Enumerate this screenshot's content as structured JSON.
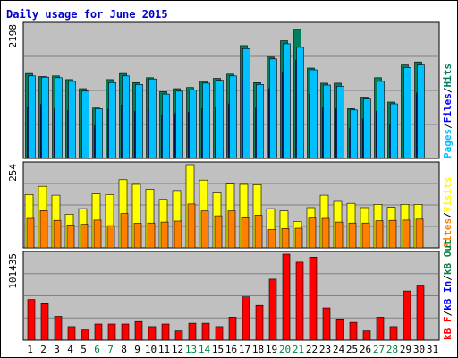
{
  "chart_data": {
    "type": "bar",
    "title": "Daily usage for June 2015",
    "days": [
      "1",
      "2",
      "3",
      "4",
      "5",
      "6",
      "7",
      "8",
      "9",
      "10",
      "11",
      "12",
      "13",
      "14",
      "15",
      "16",
      "17",
      "18",
      "19",
      "20",
      "21",
      "22",
      "23",
      "24",
      "25",
      "26",
      "27",
      "28",
      "29",
      "30",
      "31"
    ],
    "weekend_days": [
      "6",
      "7",
      "13",
      "14",
      "20",
      "21",
      "27",
      "28"
    ],
    "panels": [
      {
        "id": "hits",
        "max_label": "2198",
        "ymax": 2198,
        "series": [
          {
            "name": "Hits",
            "color": "#00805c",
            "values": [
              1400,
              1350,
              1360,
              1300,
              1150,
              830,
              1300,
              1400,
              1250,
              1330,
              1100,
              1150,
              1170,
              1270,
              1320,
              1390,
              1860,
              1250,
              1670,
              1940,
              2130,
              1490,
              1240,
              1240,
              820,
              1010,
              1330,
              930,
              1540,
              1590,
              0
            ]
          },
          {
            "name": "Files",
            "color": "#0000ff",
            "values": [
              840,
              890,
              820,
              790,
              650,
              540,
              810,
              880,
              780,
              810,
              720,
              740,
              760,
              820,
              840,
              900,
              1320,
              830,
              1150,
              1430,
              1620,
              1060,
              830,
              820,
              500,
              650,
              780,
              560,
              1000,
              1080,
              0
            ]
          },
          {
            "name": "Pages",
            "color": "#00c0ff",
            "values": [
              1360,
              1340,
              1330,
              1270,
              1110,
              820,
              1250,
              1360,
              1220,
              1310,
              1060,
              1110,
              1130,
              1240,
              1290,
              1360,
              1810,
              1220,
              1640,
              1890,
              1830,
              1460,
              1210,
              1190,
              800,
              980,
              1270,
              900,
              1500,
              1540,
              0
            ]
          }
        ]
      },
      {
        "id": "visits",
        "max_label": "254",
        "ymax": 254,
        "series": [
          {
            "name": "Visits",
            "color": "#ffff00",
            "values": [
              163,
              188,
              161,
              103,
              120,
              165,
              163,
              208,
              194,
              179,
              148,
              175,
              254,
              207,
              168,
              195,
              194,
              193,
              120,
              113,
              81,
              123,
              161,
              142,
              136,
              123,
              133,
              124,
              133,
              133,
              0
            ]
          },
          {
            "name": "Sites",
            "color": "#ff8000",
            "values": [
              90,
              114,
              84,
              70,
              72,
              85,
              68,
              105,
              75,
              76,
              79,
              82,
              134,
              113,
              98,
              113,
              92,
              100,
              56,
              59,
              60,
              91,
              90,
              79,
              76,
              76,
              83,
              84,
              85,
              88,
              0
            ]
          }
        ]
      },
      {
        "id": "kb",
        "max_label": "101435",
        "ymax": 101435,
        "series": [
          {
            "name": "kB In",
            "color": "#0000ff",
            "values": [
              0,
              0,
              0,
              0,
              0,
              0,
              0,
              0,
              0,
              0,
              0,
              0,
              0,
              0,
              0,
              0,
              0,
              0,
              0,
              0,
              0,
              0,
              0,
              0,
              0,
              0,
              0,
              0,
              0,
              0,
              0
            ]
          },
          {
            "name": "kB Out",
            "color": "#008040",
            "values": [
              0,
              0,
              0,
              0,
              0,
              0,
              0,
              0,
              0,
              0,
              0,
              0,
              0,
              0,
              0,
              0,
              0,
              0,
              0,
              0,
              0,
              0,
              0,
              0,
              0,
              0,
              0,
              0,
              0,
              0,
              0
            ]
          },
          {
            "name": "kB F",
            "color": "#ff0000",
            "values": [
              48000,
              43000,
              28000,
              16000,
              12000,
              19000,
              19000,
              19000,
              22000,
              16000,
              19000,
              11000,
              20000,
              20000,
              16000,
              27000,
              51000,
              41000,
              72000,
              101435,
              92000,
              98000,
              38000,
              25000,
              21000,
              11000,
              27000,
              16000,
              58000,
              65000,
              0
            ]
          }
        ]
      }
    ],
    "right_labels": {
      "hits": [
        {
          "text": "Pages",
          "color": "#00c0ff"
        },
        {
          "text": "/",
          "color": "#000000"
        },
        {
          "text": "Files",
          "color": "#0000ff"
        },
        {
          "text": "/",
          "color": "#000000"
        },
        {
          "text": "Hits",
          "color": "#00805c"
        }
      ],
      "visits": [
        {
          "text": "Sites",
          "color": "#ff8000"
        },
        {
          "text": "/",
          "color": "#000000"
        },
        {
          "text": "Visits",
          "color": "#ffff00"
        }
      ],
      "kb": [
        {
          "text": "kB F",
          "color": "#ff0000"
        },
        {
          "text": "/",
          "color": "#000000"
        },
        {
          "text": "kB In",
          "color": "#0000ff"
        },
        {
          "text": "/",
          "color": "#000000"
        },
        {
          "text": "kB Out",
          "color": "#008040"
        }
      ]
    },
    "grid": true,
    "colors": {
      "plot_bg": "#c0c0c0",
      "grid": "#808080",
      "weekday_tick": "#000000",
      "weekend_tick": "#008040",
      "title": "#0000cc"
    }
  }
}
